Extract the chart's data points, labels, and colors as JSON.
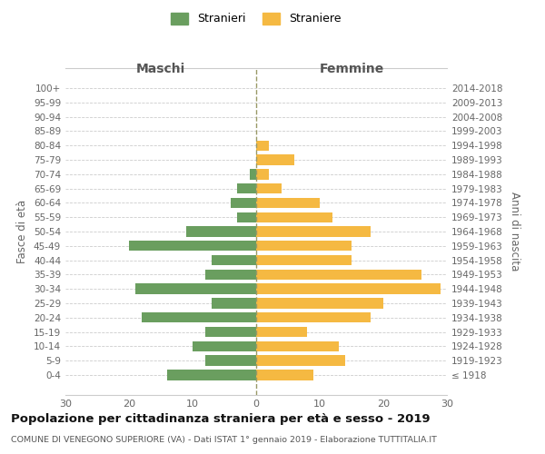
{
  "age_groups": [
    "100+",
    "95-99",
    "90-94",
    "85-89",
    "80-84",
    "75-79",
    "70-74",
    "65-69",
    "60-64",
    "55-59",
    "50-54",
    "45-49",
    "40-44",
    "35-39",
    "30-34",
    "25-29",
    "20-24",
    "15-19",
    "10-14",
    "5-9",
    "0-4"
  ],
  "birth_years": [
    "≤ 1918",
    "1919-1923",
    "1924-1928",
    "1929-1933",
    "1934-1938",
    "1939-1943",
    "1944-1948",
    "1949-1953",
    "1954-1958",
    "1959-1963",
    "1964-1968",
    "1969-1973",
    "1974-1978",
    "1979-1983",
    "1984-1988",
    "1989-1993",
    "1994-1998",
    "1999-2003",
    "2004-2008",
    "2009-2013",
    "2014-2018"
  ],
  "males": [
    0,
    0,
    0,
    0,
    0,
    0,
    1,
    3,
    4,
    3,
    11,
    20,
    7,
    8,
    19,
    7,
    18,
    8,
    10,
    8,
    14
  ],
  "females": [
    0,
    0,
    0,
    0,
    2,
    6,
    2,
    4,
    10,
    12,
    18,
    15,
    15,
    26,
    29,
    20,
    18,
    8,
    13,
    14,
    9
  ],
  "male_color": "#6a9e5f",
  "female_color": "#f5b942",
  "male_label": "Stranieri",
  "female_label": "Straniere",
  "title": "Popolazione per cittadinanza straniera per età e sesso - 2019",
  "subtitle": "COMUNE DI VENEGONO SUPERIORE (VA) - Dati ISTAT 1° gennaio 2019 - Elaborazione TUTTITALIA.IT",
  "xlabel_left": "Maschi",
  "xlabel_right": "Femmine",
  "ylabel_left": "Fasce di età",
  "ylabel_right": "Anni di nascita",
  "xlim": 30,
  "bg_color": "#ffffff",
  "grid_color": "#cccccc"
}
